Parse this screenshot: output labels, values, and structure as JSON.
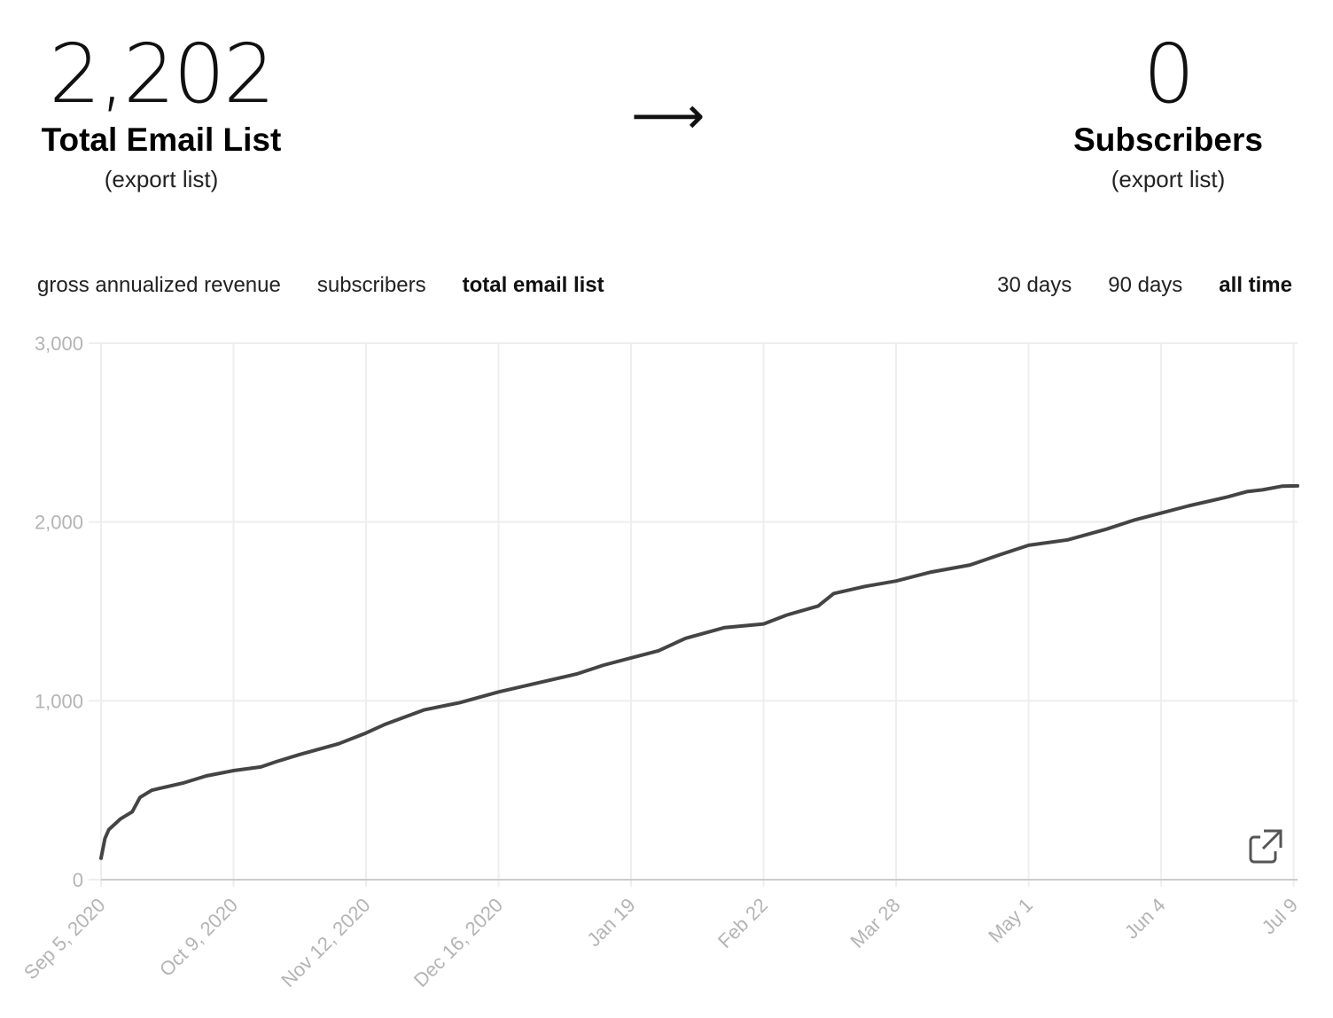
{
  "stats": {
    "total": {
      "value": "2,202",
      "label": "Total Email List",
      "export": "(export list)"
    },
    "subscribers": {
      "value": "0",
      "label": "Subscribers",
      "export": "(export list)"
    },
    "arrow": "⟶"
  },
  "metric_tabs": [
    {
      "label": "gross annualized revenue",
      "active": false
    },
    {
      "label": "subscribers",
      "active": false
    },
    {
      "label": "total email list",
      "active": true
    }
  ],
  "range_tabs": [
    {
      "label": "30 days",
      "active": false
    },
    {
      "label": "90 days",
      "active": false
    },
    {
      "label": "all time",
      "active": true
    }
  ],
  "expand_icon": "external-link-icon",
  "colors": {
    "line": "#444444",
    "grid": "#eeeeee",
    "axis": "#cccccc",
    "tick": "#b4b4b4"
  },
  "chart_data": {
    "type": "line",
    "title": "",
    "xlabel": "",
    "ylabel": "",
    "ylim": [
      0,
      3000
    ],
    "grid": true,
    "x_ticks": [
      "Sep 5, 2020",
      "Oct 9, 2020",
      "Nov 12, 2020",
      "Dec 16, 2020",
      "Jan 19",
      "Feb 22",
      "Mar 28",
      "May 1",
      "Jun 4",
      "Jul 9"
    ],
    "y_ticks": [
      "0",
      "1,000",
      "2,000",
      "3,000"
    ],
    "y_tick_values": [
      0,
      1000,
      2000,
      3000
    ],
    "series": [
      {
        "x": [
          "2020-09-05",
          "2020-09-06",
          "2020-09-07",
          "2020-09-08",
          "2020-09-10",
          "2020-09-13",
          "2020-09-15",
          "2020-09-18",
          "2020-09-20",
          "2020-09-26",
          "2020-10-02",
          "2020-10-09",
          "2020-10-16",
          "2020-10-20",
          "2020-10-26",
          "2020-11-05",
          "2020-11-12",
          "2020-11-17",
          "2020-11-27",
          "2020-12-06",
          "2020-12-16",
          "2020-12-26",
          "2021-01-05",
          "2021-01-12",
          "2021-01-19",
          "2021-01-26",
          "2021-02-02",
          "2021-02-12",
          "2021-02-22",
          "2021-02-28",
          "2021-03-08",
          "2021-03-12",
          "2021-03-20",
          "2021-03-28",
          "2021-04-06",
          "2021-04-16",
          "2021-04-24",
          "2021-05-01",
          "2021-05-11",
          "2021-05-21",
          "2021-05-28",
          "2021-06-04",
          "2021-06-11",
          "2021-06-21",
          "2021-06-26",
          "2021-06-30",
          "2021-07-05",
          "2021-07-09"
        ],
        "values": [
          120,
          230,
          280,
          300,
          340,
          380,
          460,
          500,
          510,
          540,
          580,
          610,
          630,
          660,
          700,
          760,
          820,
          870,
          950,
          990,
          1050,
          1100,
          1150,
          1200,
          1240,
          1280,
          1350,
          1410,
          1430,
          1480,
          1530,
          1600,
          1640,
          1670,
          1720,
          1760,
          1820,
          1870,
          1900,
          1960,
          2010,
          2050,
          2090,
          2140,
          2170,
          2180,
          2200,
          2202
        ]
      }
    ]
  }
}
